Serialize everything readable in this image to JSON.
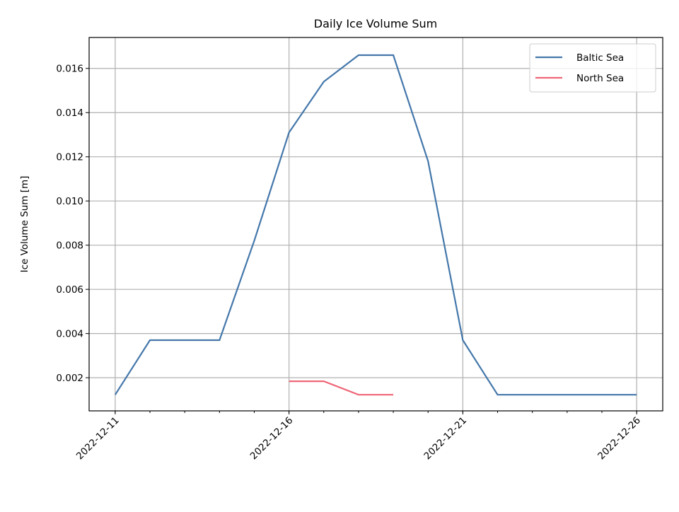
{
  "chart_data": {
    "type": "line",
    "title": "Daily Ice Volume Sum",
    "xlabel": "",
    "ylabel": "Ice Volume Sum [m]",
    "x_major_ticks": [
      "2022-12-11",
      "2022-12-16",
      "2022-12-21",
      "2022-12-26"
    ],
    "y_ticks": [
      "0.002",
      "0.004",
      "0.006",
      "0.008",
      "0.010",
      "0.012",
      "0.014",
      "0.016"
    ],
    "xlim": [
      "2022-12-10T06:00",
      "2022-12-26T18:00"
    ],
    "ylim": [
      0.0005,
      0.0174
    ],
    "grid": true,
    "legend_position": "top-right",
    "series": [
      {
        "name": "Baltic Sea",
        "color": "#4477aa",
        "x": [
          "2022-12-11",
          "2022-12-12",
          "2022-12-13",
          "2022-12-14",
          "2022-12-15",
          "2022-12-16",
          "2022-12-17",
          "2022-12-18",
          "2022-12-19",
          "2022-12-20",
          "2022-12-21",
          "2022-12-22",
          "2022-12-23",
          "2022-12-24",
          "2022-12-25",
          "2022-12-26"
        ],
        "values": [
          0.00123,
          0.0037,
          0.0037,
          0.0037,
          0.0082,
          0.0131,
          0.0154,
          0.0166,
          0.0166,
          0.0118,
          0.0037,
          0.00123,
          0.00123,
          0.00123,
          0.00123,
          0.00123
        ]
      },
      {
        "name": "North Sea",
        "color": "#ee6677",
        "x": [
          "2022-12-16",
          "2022-12-17",
          "2022-12-18",
          "2022-12-19"
        ],
        "values": [
          0.00184,
          0.00184,
          0.00123,
          0.00123
        ]
      }
    ]
  }
}
